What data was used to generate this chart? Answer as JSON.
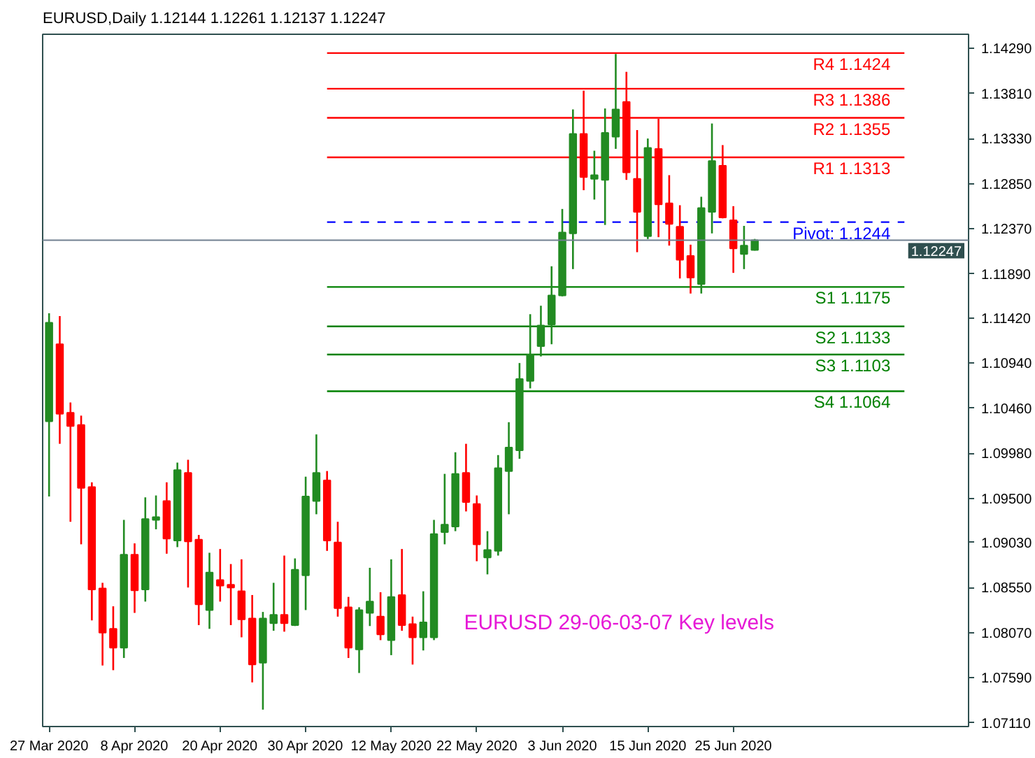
{
  "chart_data": {
    "type": "candlestick",
    "title": "EURUSD,Daily 1.12144 1.12261 1.12137 1.12247",
    "categories": [
      "27 Mar 2020",
      null,
      null,
      null,
      null,
      null,
      null,
      null,
      "8 Apr 2020",
      null,
      null,
      null,
      null,
      null,
      null,
      null,
      "20 Apr 2020",
      null,
      null,
      null,
      null,
      null,
      null,
      null,
      "30 Apr 2020",
      null,
      null,
      null,
      null,
      null,
      null,
      null,
      "12 May 2020",
      null,
      null,
      null,
      null,
      null,
      null,
      null,
      "22 May 2020",
      null,
      null,
      null,
      null,
      null,
      null,
      null,
      "3 Jun 2020",
      null,
      null,
      null,
      null,
      null,
      null,
      null,
      "15 Jun 2020",
      null,
      null,
      null,
      null,
      null,
      null,
      null,
      "25 Jun 2020",
      null,
      null,
      null,
      null,
      null,
      null,
      null,
      null,
      null,
      null,
      null,
      null,
      null,
      null,
      null,
      null
    ],
    "ohlc": [
      [
        1.1032,
        1.1147,
        1.0952,
        1.1137
      ],
      [
        1.1114,
        1.1144,
        1.1008,
        1.104
      ],
      [
        1.1041,
        1.1052,
        1.0925,
        1.1027
      ],
      [
        1.1028,
        1.1038,
        1.0901,
        1.0961
      ],
      [
        1.0962,
        1.0967,
        1.082,
        1.0853
      ],
      [
        1.0854,
        1.086,
        1.0772,
        1.0807
      ],
      [
        1.0811,
        1.0835,
        1.0767,
        1.0791
      ],
      [
        1.0791,
        1.0927,
        1.078,
        1.089
      ],
      [
        1.089,
        1.0902,
        1.0828,
        1.0852
      ],
      [
        1.0853,
        1.0951,
        1.084,
        1.0928
      ],
      [
        1.0927,
        1.0953,
        1.0917,
        1.093
      ],
      [
        1.0947,
        1.0967,
        1.0891,
        1.0907
      ],
      [
        1.0905,
        1.0988,
        1.0898,
        1.098
      ],
      [
        1.0977,
        1.0991,
        1.0855,
        1.0904
      ],
      [
        1.0906,
        1.0911,
        1.0815,
        1.0837
      ],
      [
        1.0831,
        1.0892,
        1.0811,
        1.0871
      ],
      [
        1.0863,
        1.0896,
        1.084,
        1.0857
      ],
      [
        1.0858,
        1.088,
        1.0815,
        1.0855
      ],
      [
        1.0851,
        1.0885,
        1.0802,
        1.0821
      ],
      [
        1.0822,
        1.0847,
        1.0754,
        1.0773
      ],
      [
        1.0775,
        1.0829,
        1.0725,
        1.0822
      ],
      [
        1.0817,
        1.086,
        1.0809,
        1.0826
      ],
      [
        1.0826,
        1.0889,
        1.0808,
        1.0817
      ],
      [
        1.0815,
        1.0886,
        1.0814,
        1.0874
      ],
      [
        1.0868,
        1.0973,
        1.0831,
        1.0952
      ],
      [
        1.0947,
        1.1018,
        1.0933,
        1.0977
      ],
      [
        1.0969,
        1.0979,
        1.0894,
        1.0905
      ],
      [
        1.0903,
        1.0925,
        1.0824,
        1.0833
      ],
      [
        1.0834,
        1.0845,
        1.078,
        1.0791
      ],
      [
        1.0789,
        1.0834,
        1.0764,
        1.0831
      ],
      [
        1.0828,
        1.0876,
        1.0814,
        1.084
      ],
      [
        1.0824,
        1.085,
        1.0799,
        1.0805
      ],
      [
        1.0799,
        1.0885,
        1.0783,
        1.0845
      ],
      [
        1.0847,
        1.0896,
        1.0809,
        1.0815
      ],
      [
        1.0816,
        1.0824,
        1.0773,
        1.0802
      ],
      [
        1.0802,
        1.0851,
        1.0788,
        1.0818
      ],
      [
        1.0802,
        1.0927,
        1.0799,
        1.0912
      ],
      [
        1.0914,
        1.0976,
        1.0901,
        1.0922
      ],
      [
        1.092,
        1.0999,
        1.0915,
        1.0976
      ],
      [
        1.0977,
        1.1008,
        1.0936,
        1.0946
      ],
      [
        1.0944,
        1.0953,
        1.0883,
        1.0901
      ],
      [
        1.0887,
        1.0915,
        1.0869,
        1.0895
      ],
      [
        1.0894,
        1.0996,
        1.0889,
        1.0982
      ],
      [
        1.0979,
        1.1031,
        1.0933,
        1.1004
      ],
      [
        1.1001,
        1.1094,
        1.0992,
        1.1077
      ],
      [
        1.1075,
        1.1146,
        1.1067,
        1.1103
      ],
      [
        1.1112,
        1.1155,
        1.1101,
        1.1134
      ],
      [
        1.1135,
        1.1197,
        1.1114,
        1.1166
      ],
      [
        1.1166,
        1.1258,
        1.1165,
        1.1233
      ],
      [
        1.1232,
        1.1364,
        1.1194,
        1.1338
      ],
      [
        1.1338,
        1.1384,
        1.1278,
        1.1292
      ],
      [
        1.129,
        1.132,
        1.1268,
        1.1294
      ],
      [
        1.1289,
        1.1365,
        1.1241,
        1.1339
      ],
      [
        1.1335,
        1.1423,
        1.1322,
        1.1364
      ],
      [
        1.1372,
        1.1404,
        1.1289,
        1.1297
      ],
      [
        1.129,
        1.1342,
        1.1212,
        1.1255
      ],
      [
        1.1229,
        1.1333,
        1.1226,
        1.1323
      ],
      [
        1.1322,
        1.1354,
        1.1228,
        1.1263
      ],
      [
        1.1264,
        1.1294,
        1.1219,
        1.1242
      ],
      [
        1.1239,
        1.1262,
        1.1184,
        1.1204
      ],
      [
        1.1208,
        1.122,
        1.1168,
        1.1185
      ],
      [
        1.1178,
        1.1271,
        1.1168,
        1.1259
      ],
      [
        1.1255,
        1.1349,
        1.1232,
        1.1309
      ],
      [
        1.1304,
        1.1326,
        1.1248,
        1.1249
      ],
      [
        1.1246,
        1.1261,
        1.119,
        1.1216
      ],
      [
        1.121,
        1.124,
        1.1194,
        1.1219
      ],
      [
        1.12144,
        1.12261,
        1.12137,
        1.12247
      ],
      null,
      null,
      null,
      null,
      null,
      null,
      null,
      null,
      null,
      null,
      null,
      null,
      null,
      null
    ],
    "colors": [
      "#228b22",
      "#ff0000",
      "#ff0000",
      "#ff0000",
      "#ff0000",
      "#ff0000",
      "#ff0000",
      "#228b22",
      "#ff0000",
      "#228b22",
      "#228b22",
      "#ff0000",
      "#228b22",
      "#ff0000",
      "#ff0000",
      "#228b22",
      "#ff0000",
      "#ff0000",
      "#ff0000",
      "#ff0000",
      "#228b22",
      "#228b22",
      "#ff0000",
      "#228b22",
      "#228b22",
      "#228b22",
      "#ff0000",
      "#ff0000",
      "#ff0000",
      "#228b22",
      "#228b22",
      "#ff0000",
      "#228b22",
      "#ff0000",
      "#ff0000",
      "#228b22",
      "#228b22",
      "#228b22",
      "#228b22",
      "#ff0000",
      "#ff0000",
      "#228b22",
      "#228b22",
      "#228b22",
      "#228b22",
      "#228b22",
      "#228b22",
      "#228b22",
      "#228b22",
      "#228b22",
      "#ff0000",
      "#228b22",
      "#228b22",
      "#228b22",
      "#ff0000",
      "#ff0000",
      "#228b22",
      "#ff0000",
      "#ff0000",
      "#ff0000",
      "#ff0000",
      "#228b22",
      "#228b22",
      "#ff0000",
      "#ff0000",
      "#228b22",
      "#228b22",
      null,
      null,
      null,
      null,
      null,
      null,
      null,
      null,
      null,
      null,
      null,
      null,
      null,
      null
    ],
    "ylim": [
      1.0707,
      1.1444
    ],
    "yticks": [
      {
        "value": 1.1429,
        "label": "1.14290"
      },
      {
        "value": 1.1381,
        "label": "1.13810"
      },
      {
        "value": 1.1333,
        "label": "1.13330"
      },
      {
        "value": 1.1285,
        "label": "1.12850"
      },
      {
        "value": 1.1237,
        "label": "1.12370"
      },
      {
        "value": 1.1189,
        "label": "1.11890"
      },
      {
        "value": 1.1142,
        "label": "1.11420"
      },
      {
        "value": 1.1094,
        "label": "1.10940"
      },
      {
        "value": 1.1046,
        "label": "1.10460"
      },
      {
        "value": 1.0998,
        "label": "1.09980"
      },
      {
        "value": 1.095,
        "label": "1.09500"
      },
      {
        "value": 1.0903,
        "label": "1.09030"
      },
      {
        "value": 1.0855,
        "label": "1.08550"
      },
      {
        "value": 1.0807,
        "label": "1.08070"
      },
      {
        "value": 1.0759,
        "label": "1.07590"
      },
      {
        "value": 1.0711,
        "label": "1.07110"
      }
    ],
    "series": [
      {
        "type": "line",
        "name": "R4 1.1424",
        "color": "#ff0000",
        "values": [
          null,
          null,
          null,
          null,
          null,
          null,
          null,
          null,
          null,
          null,
          null,
          null,
          null,
          null,
          null,
          null,
          null,
          null,
          null,
          null,
          null,
          null,
          null,
          null,
          null,
          null,
          1.1424,
          1.1424,
          1.1424,
          1.1424,
          1.1424,
          1.1424,
          1.1424,
          1.1424,
          1.1424,
          1.1424,
          1.1424,
          1.1424,
          1.1424,
          1.1424,
          1.1424,
          1.1424,
          1.1424,
          1.1424,
          1.1424,
          1.1424,
          1.1424,
          1.1424,
          1.1424,
          1.1424,
          1.1424,
          1.1424,
          1.1424,
          1.1424,
          1.1424,
          1.1424,
          1.1424,
          1.1424,
          1.1424,
          1.1424,
          1.1424,
          1.1424,
          1.1424,
          1.1424,
          1.1424,
          1.1424,
          1.1424,
          1.1424,
          1.1424,
          1.1424,
          1.1424,
          1.1424,
          1.1424,
          1.1424,
          1.1424,
          1.1424,
          1.1424,
          1.1424,
          1.1424,
          1.1424,
          1.1424
        ]
      },
      {
        "type": "line",
        "name": "R3 1.1386",
        "color": "#ff0000",
        "values": [
          null,
          null,
          null,
          null,
          null,
          null,
          null,
          null,
          null,
          null,
          null,
          null,
          null,
          null,
          null,
          null,
          null,
          null,
          null,
          null,
          null,
          null,
          null,
          null,
          null,
          null,
          1.1386,
          1.1386,
          1.1386,
          1.1386,
          1.1386,
          1.1386,
          1.1386,
          1.1386,
          1.1386,
          1.1386,
          1.1386,
          1.1386,
          1.1386,
          1.1386,
          1.1386,
          1.1386,
          1.1386,
          1.1386,
          1.1386,
          1.1386,
          1.1386,
          1.1386,
          1.1386,
          1.1386,
          1.1386,
          1.1386,
          1.1386,
          1.1386,
          1.1386,
          1.1386,
          1.1386,
          1.1386,
          1.1386,
          1.1386,
          1.1386,
          1.1386,
          1.1386,
          1.1386,
          1.1386,
          1.1386,
          1.1386,
          1.1386,
          1.1386,
          1.1386,
          1.1386,
          1.1386,
          1.1386,
          1.1386,
          1.1386,
          1.1386,
          1.1386,
          1.1386,
          1.1386,
          1.1386,
          1.1386
        ]
      },
      {
        "type": "line",
        "name": "R2 1.1355",
        "color": "#ff0000",
        "values": [
          null,
          null,
          null,
          null,
          null,
          null,
          null,
          null,
          null,
          null,
          null,
          null,
          null,
          null,
          null,
          null,
          null,
          null,
          null,
          null,
          null,
          null,
          null,
          null,
          null,
          null,
          1.1355,
          1.1355,
          1.1355,
          1.1355,
          1.1355,
          1.1355,
          1.1355,
          1.1355,
          1.1355,
          1.1355,
          1.1355,
          1.1355,
          1.1355,
          1.1355,
          1.1355,
          1.1355,
          1.1355,
          1.1355,
          1.1355,
          1.1355,
          1.1355,
          1.1355,
          1.1355,
          1.1355,
          1.1355,
          1.1355,
          1.1355,
          1.1355,
          1.1355,
          1.1355,
          1.1355,
          1.1355,
          1.1355,
          1.1355,
          1.1355,
          1.1355,
          1.1355,
          1.1355,
          1.1355,
          1.1355,
          1.1355,
          1.1355,
          1.1355,
          1.1355,
          1.1355,
          1.1355,
          1.1355,
          1.1355,
          1.1355,
          1.1355,
          1.1355,
          1.1355,
          1.1355,
          1.1355,
          1.1355
        ]
      },
      {
        "type": "line",
        "name": "R1 1.1313",
        "color": "#ff0000",
        "values": [
          null,
          null,
          null,
          null,
          null,
          null,
          null,
          null,
          null,
          null,
          null,
          null,
          null,
          null,
          null,
          null,
          null,
          null,
          null,
          null,
          null,
          null,
          null,
          null,
          null,
          null,
          1.1313,
          1.1313,
          1.1313,
          1.1313,
          1.1313,
          1.1313,
          1.1313,
          1.1313,
          1.1313,
          1.1313,
          1.1313,
          1.1313,
          1.1313,
          1.1313,
          1.1313,
          1.1313,
          1.1313,
          1.1313,
          1.1313,
          1.1313,
          1.1313,
          1.1313,
          1.1313,
          1.1313,
          1.1313,
          1.1313,
          1.1313,
          1.1313,
          1.1313,
          1.1313,
          1.1313,
          1.1313,
          1.1313,
          1.1313,
          1.1313,
          1.1313,
          1.1313,
          1.1313,
          1.1313,
          1.1313,
          1.1313,
          1.1313,
          1.1313,
          1.1313,
          1.1313,
          1.1313,
          1.1313,
          1.1313,
          1.1313,
          1.1313,
          1.1313,
          1.1313,
          1.1313,
          1.1313,
          1.1313
        ]
      },
      {
        "type": "line",
        "name": "Pivot: 1.1244",
        "color": "#0000ff",
        "line_style": "dashed",
        "values": [
          null,
          null,
          null,
          null,
          null,
          null,
          null,
          null,
          null,
          null,
          null,
          null,
          null,
          null,
          null,
          null,
          null,
          null,
          null,
          null,
          null,
          null,
          null,
          null,
          null,
          null,
          1.1244,
          1.1244,
          1.1244,
          1.1244,
          1.1244,
          1.1244,
          1.1244,
          1.1244,
          1.1244,
          1.1244,
          1.1244,
          1.1244,
          1.1244,
          1.1244,
          1.1244,
          1.1244,
          1.1244,
          1.1244,
          1.1244,
          1.1244,
          1.1244,
          1.1244,
          1.1244,
          1.1244,
          1.1244,
          1.1244,
          1.1244,
          1.1244,
          1.1244,
          1.1244,
          1.1244,
          1.1244,
          1.1244,
          1.1244,
          1.1244,
          1.1244,
          1.1244,
          1.1244,
          1.1244,
          1.1244,
          1.1244,
          1.1244,
          1.1244,
          1.1244,
          1.1244,
          1.1244,
          1.1244,
          1.1244,
          1.1244,
          1.1244,
          1.1244,
          1.1244,
          1.1244,
          1.1244,
          1.1244
        ]
      },
      {
        "type": "line",
        "name": "S1 1.1175",
        "color": "#008000",
        "values": [
          null,
          null,
          null,
          null,
          null,
          null,
          null,
          null,
          null,
          null,
          null,
          null,
          null,
          null,
          null,
          null,
          null,
          null,
          null,
          null,
          null,
          null,
          null,
          null,
          null,
          null,
          1.1175,
          1.1175,
          1.1175,
          1.1175,
          1.1175,
          1.1175,
          1.1175,
          1.1175,
          1.1175,
          1.1175,
          1.1175,
          1.1175,
          1.1175,
          1.1175,
          1.1175,
          1.1175,
          1.1175,
          1.1175,
          1.1175,
          1.1175,
          1.1175,
          1.1175,
          1.1175,
          1.1175,
          1.1175,
          1.1175,
          1.1175,
          1.1175,
          1.1175,
          1.1175,
          1.1175,
          1.1175,
          1.1175,
          1.1175,
          1.1175,
          1.1175,
          1.1175,
          1.1175,
          1.1175,
          1.1175,
          1.1175,
          1.1175,
          1.1175,
          1.1175,
          1.1175,
          1.1175,
          1.1175,
          1.1175,
          1.1175,
          1.1175,
          1.1175,
          1.1175,
          1.1175,
          1.1175,
          1.1175
        ]
      },
      {
        "type": "line",
        "name": "S2 1.1133",
        "color": "#008000",
        "values": [
          null,
          null,
          null,
          null,
          null,
          null,
          null,
          null,
          null,
          null,
          null,
          null,
          null,
          null,
          null,
          null,
          null,
          null,
          null,
          null,
          null,
          null,
          null,
          null,
          null,
          null,
          1.1133,
          1.1133,
          1.1133,
          1.1133,
          1.1133,
          1.1133,
          1.1133,
          1.1133,
          1.1133,
          1.1133,
          1.1133,
          1.1133,
          1.1133,
          1.1133,
          1.1133,
          1.1133,
          1.1133,
          1.1133,
          1.1133,
          1.1133,
          1.1133,
          1.1133,
          1.1133,
          1.1133,
          1.1133,
          1.1133,
          1.1133,
          1.1133,
          1.1133,
          1.1133,
          1.1133,
          1.1133,
          1.1133,
          1.1133,
          1.1133,
          1.1133,
          1.1133,
          1.1133,
          1.1133,
          1.1133,
          1.1133,
          1.1133,
          1.1133,
          1.1133,
          1.1133,
          1.1133,
          1.1133,
          1.1133,
          1.1133,
          1.1133,
          1.1133,
          1.1133,
          1.1133,
          1.1133,
          1.1133
        ]
      },
      {
        "type": "line",
        "name": "S3 1.1103",
        "color": "#008000",
        "values": [
          null,
          null,
          null,
          null,
          null,
          null,
          null,
          null,
          null,
          null,
          null,
          null,
          null,
          null,
          null,
          null,
          null,
          null,
          null,
          null,
          null,
          null,
          null,
          null,
          null,
          null,
          1.1103,
          1.1103,
          1.1103,
          1.1103,
          1.1103,
          1.1103,
          1.1103,
          1.1103,
          1.1103,
          1.1103,
          1.1103,
          1.1103,
          1.1103,
          1.1103,
          1.1103,
          1.1103,
          1.1103,
          1.1103,
          1.1103,
          1.1103,
          1.1103,
          1.1103,
          1.1103,
          1.1103,
          1.1103,
          1.1103,
          1.1103,
          1.1103,
          1.1103,
          1.1103,
          1.1103,
          1.1103,
          1.1103,
          1.1103,
          1.1103,
          1.1103,
          1.1103,
          1.1103,
          1.1103,
          1.1103,
          1.1103,
          1.1103,
          1.1103,
          1.1103,
          1.1103,
          1.1103,
          1.1103,
          1.1103,
          1.1103,
          1.1103,
          1.1103,
          1.1103,
          1.1103,
          1.1103,
          1.1103
        ]
      },
      {
        "type": "line",
        "name": "S4 1.1064",
        "color": "#008000",
        "values": [
          null,
          null,
          null,
          null,
          null,
          null,
          null,
          null,
          null,
          null,
          null,
          null,
          null,
          null,
          null,
          null,
          null,
          null,
          null,
          null,
          null,
          null,
          null,
          null,
          null,
          null,
          1.1064,
          1.1064,
          1.1064,
          1.1064,
          1.1064,
          1.1064,
          1.1064,
          1.1064,
          1.1064,
          1.1064,
          1.1064,
          1.1064,
          1.1064,
          1.1064,
          1.1064,
          1.1064,
          1.1064,
          1.1064,
          1.1064,
          1.1064,
          1.1064,
          1.1064,
          1.1064,
          1.1064,
          1.1064,
          1.1064,
          1.1064,
          1.1064,
          1.1064,
          1.1064,
          1.1064,
          1.1064,
          1.1064,
          1.1064,
          1.1064,
          1.1064,
          1.1064,
          1.1064,
          1.1064,
          1.1064,
          1.1064,
          1.1064,
          1.1064,
          1.1064,
          1.1064,
          1.1064,
          1.1064,
          1.1064,
          1.1064,
          1.1064,
          1.1064,
          1.1064,
          1.1064,
          1.1064,
          1.1064
        ]
      }
    ],
    "ref_lines": [
      {
        "axis": "y",
        "value": 1.12247,
        "label": "1.12247",
        "color": "#708090"
      }
    ],
    "annotations": [
      "EURUSD 29-06-03-07 Key levels"
    ],
    "grid": false
  }
}
